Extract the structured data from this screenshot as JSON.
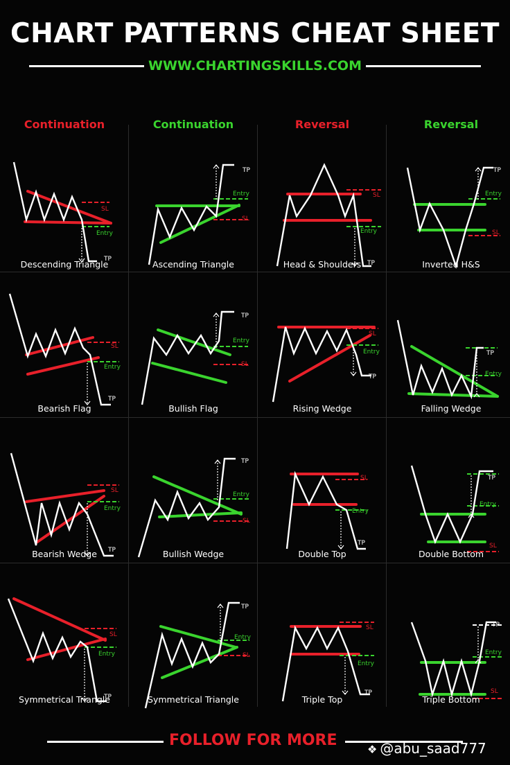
{
  "header": {
    "title": "CHART PATTERNS CHEAT SHEET",
    "url": "WWW.CHARTINGSKILLS.COM"
  },
  "categories": [
    {
      "label": "Continuation",
      "color": "#e8202a"
    },
    {
      "label": "Continuation",
      "color": "#3ad42e"
    },
    {
      "label": "Reversal",
      "color": "#e8202a"
    },
    {
      "label": "Reversal",
      "color": "#3ad42e"
    }
  ],
  "labels": {
    "sl": "SL",
    "entry": "Entry",
    "tp": "TP"
  },
  "colors": {
    "bearish": "#e8202a",
    "bullish": "#3ad42e",
    "price": "#ffffff"
  },
  "patterns": [
    {
      "name": "Descending Triangle",
      "bias": "bearish"
    },
    {
      "name": "Ascending Triangle",
      "bias": "bullish"
    },
    {
      "name": "Head & Shoulders",
      "bias": "bearish"
    },
    {
      "name": "Inverted H&S",
      "bias": "bullish"
    },
    {
      "name": "Bearish Flag",
      "bias": "bearish"
    },
    {
      "name": "Bullish Flag",
      "bias": "bullish"
    },
    {
      "name": "Rising Wedge",
      "bias": "bearish"
    },
    {
      "name": "Falling Wedge",
      "bias": "bullish"
    },
    {
      "name": "Bearish Wedge",
      "bias": "bearish"
    },
    {
      "name": "Bullish Wedge",
      "bias": "bullish"
    },
    {
      "name": "Double Top",
      "bias": "bearish"
    },
    {
      "name": "Double Bottom",
      "bias": "bullish"
    },
    {
      "name": "Symmetrical Triangle",
      "bias": "bearish"
    },
    {
      "name": "Symmetrical Triangle",
      "bias": "bullish"
    },
    {
      "name": "Triple Top",
      "bias": "bearish"
    },
    {
      "name": "Triple Bottom",
      "bias": "bullish"
    }
  ],
  "footer": {
    "cta": "FOLLOW FOR MORE",
    "handle": "@abu_saad777"
  }
}
